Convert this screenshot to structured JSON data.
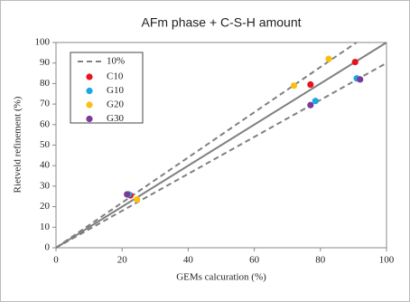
{
  "chart_data": {
    "type": "scatter",
    "title": "AFm phase + C-S-H amount",
    "x_label": "GEMs calcuration (%)",
    "y_label": "Rietveld refinement (%)",
    "xlim": [
      0,
      100
    ],
    "ylim": [
      0,
      100
    ],
    "xticks": [
      0,
      20,
      40,
      60,
      80,
      100
    ],
    "yticks": [
      0,
      10,
      20,
      30,
      40,
      50,
      60,
      70,
      80,
      90,
      100
    ],
    "reference_lines": [
      {
        "name": "10%",
        "style": "dashed",
        "color": "#808080",
        "x": [
          0,
          90.9
        ],
        "y": [
          0,
          100
        ]
      },
      {
        "style": "dashed",
        "color": "#808080",
        "x": [
          0,
          100
        ],
        "y": [
          0,
          90
        ]
      },
      {
        "style": "solid",
        "color": "#808080",
        "x": [
          0,
          100
        ],
        "y": [
          0,
          100
        ]
      }
    ],
    "series": [
      {
        "name": "C10",
        "color": "#e8141c",
        "x": [
          90.5,
          77,
          22.5
        ],
        "values": [
          90.5,
          79.5,
          25.5
        ]
      },
      {
        "name": "G10",
        "color": "#1aa8e0",
        "x": [
          78.5,
          91,
          22
        ],
        "values": [
          71.5,
          82.5,
          26
        ]
      },
      {
        "name": "G20",
        "color": "#fbbf0f",
        "x": [
          82.5,
          72,
          24.5
        ],
        "values": [
          92,
          79,
          23.5
        ]
      },
      {
        "name": "G30",
        "color": "#7a3a9a",
        "x": [
          77,
          92,
          21.5
        ],
        "values": [
          69.5,
          82,
          26
        ]
      }
    ]
  }
}
